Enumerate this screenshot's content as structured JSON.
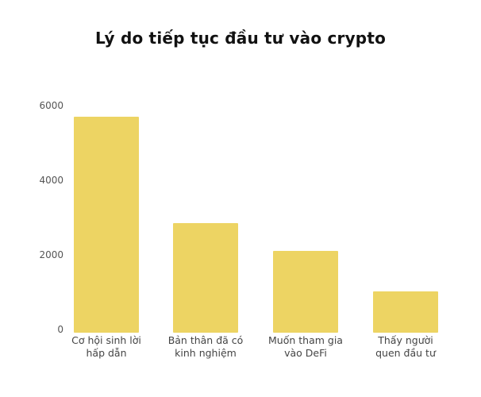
{
  "title": "Lý do tiếp tục đầu tư vào crypto",
  "colors": {
    "bar": "#EDD463",
    "text": "#111111",
    "tick": "#555555"
  },
  "chart_data": {
    "type": "bar",
    "title": "Lý do tiếp tục đầu tư vào crypto",
    "xlabel": "",
    "ylabel": "",
    "categories": [
      "Cơ hội sinh lời hấp dẫn",
      "Bản thân đã có kinh nghiệm",
      "Muốn tham gia vào DeFi",
      "Thấy người quen đầu tư"
    ],
    "category_lines": [
      [
        "Cơ hội sinh lời",
        "hấp dẫn"
      ],
      [
        "Bản thân đã có",
        "kinh nghiệm"
      ],
      [
        "Muốn tham gia",
        "vào DeFi"
      ],
      [
        "Thấy người",
        "quen đầu tư"
      ]
    ],
    "values": [
      5700,
      2900,
      2170,
      1100
    ],
    "ylim": [
      0,
      6000
    ],
    "yticks": [
      0,
      2000,
      4000,
      6000
    ],
    "ytick_labels": [
      "0",
      "2000",
      "4000",
      "6000"
    ],
    "grid": false,
    "legend": null
  }
}
